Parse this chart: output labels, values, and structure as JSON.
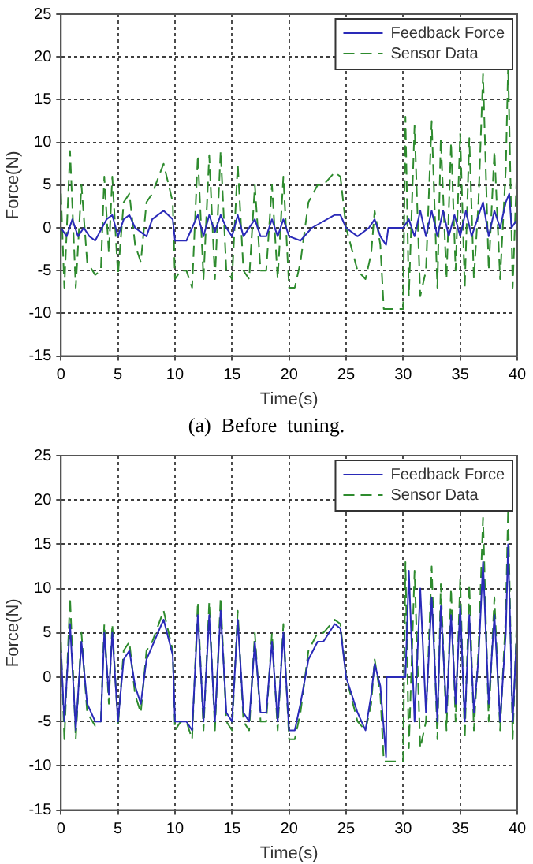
{
  "chart_data": [
    {
      "type": "line",
      "xlabel": "Time(s)",
      "ylabel": "Force(N)",
      "annotations": [
        "(a)  Before  tuning."
      ],
      "xlim": [
        0,
        40
      ],
      "ylim": [
        -15,
        25
      ],
      "xticks": [
        0,
        5,
        10,
        15,
        20,
        25,
        30,
        35,
        40
      ],
      "yticks": [
        -15,
        -10,
        -5,
        0,
        5,
        10,
        15,
        20,
        25
      ],
      "grid": true,
      "legend": "top right",
      "marker": "none",
      "series": [
        {
          "name": "Feedback Force",
          "color": "#2a2ab8",
          "line_style": "solid",
          "x": [
            0,
            0.5,
            1,
            1.5,
            2,
            2.5,
            3,
            4,
            4.5,
            5,
            5.5,
            6,
            6.5,
            7,
            7.5,
            8,
            9,
            9.8,
            10,
            11,
            12,
            12.5,
            13,
            13.5,
            14,
            14.5,
            15,
            15.5,
            16,
            17,
            17.5,
            18,
            18.5,
            19,
            19.5,
            20,
            21,
            22,
            24,
            24.5,
            25,
            26,
            27,
            27.5,
            28,
            28.5,
            28.7,
            30,
            30.5,
            31,
            31.5,
            32,
            32.5,
            33,
            33.5,
            34,
            34.5,
            35,
            35.5,
            36,
            37,
            37.5,
            38,
            38.5,
            39,
            39.3,
            39.5,
            40
          ],
          "values": [
            0,
            -1,
            1,
            -1,
            0,
            -1,
            -1.5,
            1,
            1.5,
            -1,
            1,
            1.5,
            0,
            -0.5,
            -1,
            1,
            2,
            1,
            -1.5,
            -1.5,
            1.5,
            -1,
            1.5,
            -0.5,
            1.5,
            0,
            -1,
            1.5,
            -1,
            1,
            -1,
            -1,
            1,
            -1,
            1,
            -1,
            -1.5,
            0,
            1.5,
            1.5,
            0,
            -1,
            0,
            1,
            -1,
            -2,
            0,
            0,
            1,
            -1,
            2,
            -1,
            2,
            -1,
            2,
            -1,
            1.5,
            -1,
            2,
            -1,
            3,
            -1,
            2,
            0,
            3,
            4,
            0,
            1
          ]
        },
        {
          "name": "Sensor Data",
          "color": "#2e8b2e",
          "line_style": "dashed",
          "x": [
            0,
            0.3,
            0.8,
            1.3,
            1.8,
            2.3,
            3,
            3.5,
            3.8,
            4.2,
            4.5,
            5,
            5.5,
            6,
            6.5,
            7,
            7.5,
            8,
            9,
            9.8,
            10,
            10.5,
            11,
            11.5,
            12,
            12.5,
            13,
            13.5,
            14,
            14.5,
            15,
            15.5,
            16,
            16.5,
            17,
            17.5,
            18,
            18.5,
            19,
            19.5,
            20,
            20.5,
            21,
            21.7,
            22.5,
            23,
            24,
            24.5,
            25,
            26,
            26.7,
            27.2,
            27.5,
            28,
            28.3,
            29,
            30,
            30.2,
            30.5,
            31,
            31.5,
            32,
            32.5,
            33,
            33.3,
            33.8,
            34.2,
            34.6,
            35,
            35.4,
            35.8,
            36.2,
            36.6,
            37,
            37.5,
            38,
            38.5,
            39,
            39.2,
            39.6,
            40
          ],
          "values": [
            4,
            -7,
            9,
            -7,
            5,
            -4,
            -5.5,
            -5,
            6,
            -3,
            6,
            -5.5,
            3,
            4,
            -2,
            -4,
            3,
            4,
            7.5,
            3,
            -6,
            -5,
            -5,
            -7,
            8.5,
            -6,
            8.5,
            -6,
            9,
            -5,
            -6,
            7.5,
            -5,
            -6,
            5,
            -5,
            -5,
            5,
            -6,
            6,
            -7,
            -7,
            -4,
            3,
            5,
            5,
            6.5,
            6,
            0,
            -5,
            -6,
            -3,
            2,
            -2,
            -9.5,
            -9.5,
            -9.5,
            13,
            -8,
            12,
            -8,
            -5,
            12.5,
            -7,
            10.5,
            -6,
            10,
            -5,
            11,
            -7,
            10.5,
            -6,
            3,
            18,
            -5,
            9,
            -6,
            7,
            19,
            -7,
            8
          ]
        }
      ]
    },
    {
      "type": "line",
      "xlabel": "Time(s)",
      "ylabel": "Force(N)",
      "xlim": [
        0,
        40
      ],
      "ylim": [
        -15,
        25
      ],
      "xticks": [
        0,
        5,
        10,
        15,
        20,
        25,
        30,
        35,
        40
      ],
      "yticks": [
        -15,
        -10,
        -5,
        0,
        5,
        10,
        15,
        20,
        25
      ],
      "grid": true,
      "legend": "top right",
      "marker": "none",
      "series": [
        {
          "name": "Feedback Force",
          "color": "#2a2ab8",
          "line_style": "solid",
          "x": [
            0,
            0.3,
            0.8,
            1.3,
            1.8,
            2.3,
            3,
            3.5,
            3.8,
            4.2,
            4.5,
            5,
            5.5,
            6,
            6.5,
            7,
            7.5,
            8,
            9,
            9.8,
            10,
            10.5,
            11,
            11.5,
            12,
            12.5,
            13,
            13.5,
            14,
            14.5,
            15,
            15.5,
            16,
            16.5,
            17,
            17.5,
            18,
            18.5,
            19,
            19.5,
            20,
            20.5,
            21,
            21.7,
            22.5,
            23,
            24,
            24.5,
            25,
            26,
            26.7,
            27.2,
            27.5,
            28,
            28.5,
            28.55,
            30.2,
            30.5,
            31,
            31.5,
            32,
            32.5,
            33,
            33.3,
            33.8,
            34.2,
            34.6,
            35,
            35.4,
            35.8,
            36.2,
            36.6,
            37,
            37.5,
            38,
            38.5,
            39,
            39.2,
            39.6,
            40
          ],
          "values": [
            3,
            -5,
            6,
            -6,
            4,
            -3,
            -5,
            -5,
            5,
            -2,
            5,
            -5,
            2,
            3,
            -1,
            -3,
            2,
            3.5,
            6.5,
            2.5,
            -5,
            -5,
            -5,
            -6,
            7,
            -5,
            7,
            -5,
            7.5,
            -4,
            -5,
            6.5,
            -4,
            -5,
            4,
            -4,
            -4,
            4,
            -5,
            5,
            -6,
            -6,
            -3,
            2,
            4,
            4,
            6,
            5.5,
            0,
            -4,
            -6,
            -2,
            1.5,
            -1,
            -9,
            0,
            0,
            12,
            -5,
            10,
            -4,
            9,
            -5,
            8,
            -4,
            7,
            -3,
            8,
            -5,
            7,
            -4,
            2,
            13,
            -3,
            7,
            -5,
            5,
            15,
            -5,
            6
          ]
        },
        {
          "name": "Sensor Data",
          "color": "#2e8b2e",
          "line_style": "dashed",
          "x": [
            0,
            0.3,
            0.8,
            1.3,
            1.8,
            2.3,
            3,
            3.5,
            3.8,
            4.2,
            4.5,
            5,
            5.5,
            6,
            6.5,
            7,
            7.5,
            8,
            9,
            9.8,
            10,
            10.5,
            11,
            11.5,
            12,
            12.5,
            13,
            13.5,
            14,
            14.5,
            15,
            15.5,
            16,
            16.5,
            17,
            17.5,
            18,
            18.5,
            19,
            19.5,
            20,
            20.5,
            21,
            21.7,
            22.5,
            23,
            24,
            24.5,
            25,
            26,
            26.7,
            27.2,
            27.5,
            28,
            28.3,
            29,
            30,
            30.2,
            30.5,
            31,
            31.5,
            32,
            32.5,
            33,
            33.3,
            33.8,
            34.2,
            34.6,
            35,
            35.4,
            35.8,
            36.2,
            36.6,
            37,
            37.5,
            38,
            38.5,
            39,
            39.2,
            39.6,
            40
          ],
          "values": [
            4,
            -7,
            9,
            -7,
            5,
            -4,
            -5.5,
            -5,
            6,
            -3,
            6,
            -5.5,
            3,
            4,
            -2,
            -4,
            3,
            4,
            7.5,
            3,
            -6,
            -5,
            -5,
            -7,
            8.5,
            -6,
            8.5,
            -6,
            9,
            -5,
            -6,
            7.5,
            -5,
            -6,
            5,
            -5,
            -5,
            5,
            -6,
            6,
            -7,
            -7,
            -4,
            3,
            5,
            5,
            6.5,
            6,
            0,
            -5,
            -6,
            -3,
            2,
            -2,
            -9.5,
            -9.5,
            -9.5,
            13,
            -8,
            12,
            -8,
            -5,
            12.5,
            -7,
            10.5,
            -6,
            10,
            -5,
            11,
            -7,
            10.5,
            -6,
            3,
            18,
            -5,
            9,
            -6,
            7,
            19,
            -7,
            8
          ]
        }
      ]
    }
  ]
}
